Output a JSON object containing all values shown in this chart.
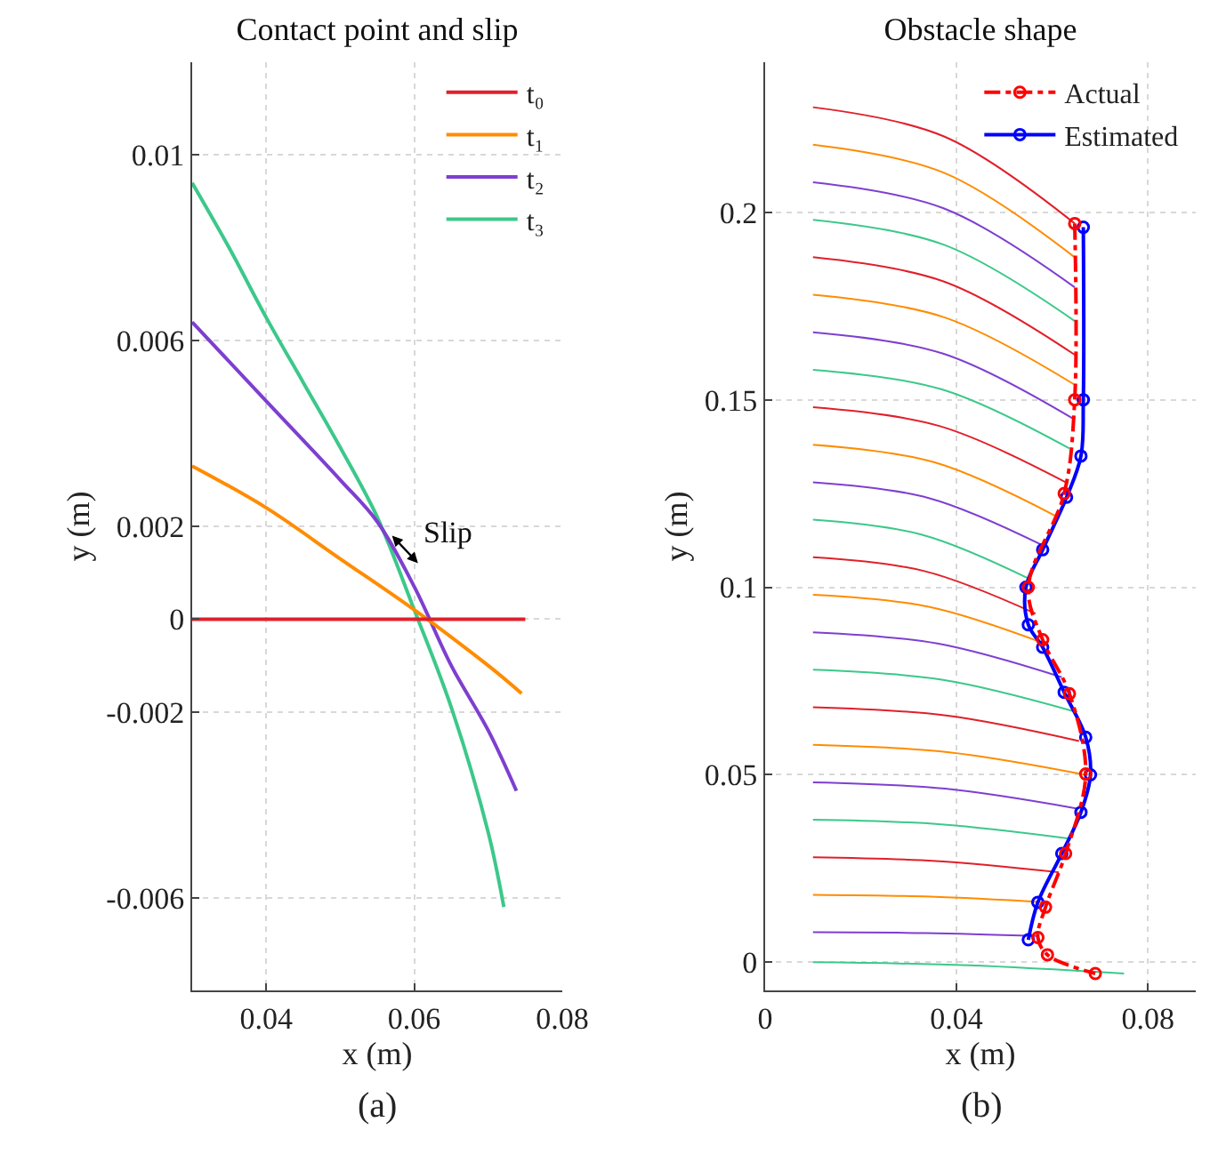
{
  "chart_data": [
    {
      "type": "line",
      "title": "Contact point and slip",
      "xlabel": "x (m)",
      "ylabel": "y (m)",
      "xlim": [
        0.03,
        0.08
      ],
      "xticks": [
        0.04,
        0.06,
        0.08
      ],
      "ylim": [
        -0.008,
        0.012
      ],
      "yticks": [
        -0.006,
        -0.002,
        0,
        0.002,
        0.006,
        0.01
      ],
      "grid": true,
      "legend": "top right",
      "series": [
        {
          "name": "t₀",
          "color": "#e0202a",
          "x": [
            0.03,
            0.075
          ],
          "values": [
            0,
            0
          ]
        },
        {
          "name": "t₁",
          "color": "#ff8c00",
          "x": [
            0.03,
            0.04,
            0.05,
            0.06,
            0.07,
            0.0745
          ],
          "values": [
            0.0033,
            0.0024,
            0.0013,
            0.0002,
            -0.001,
            -0.0016
          ]
        },
        {
          "name": "t₂",
          "color": "#7e3fd0",
          "x": [
            0.03,
            0.04,
            0.05,
            0.055,
            0.06,
            0.065,
            0.07,
            0.0738
          ],
          "values": [
            0.0064,
            0.0047,
            0.003,
            0.0021,
            0.0007,
            -0.001,
            -0.0024,
            -0.0037
          ]
        },
        {
          "name": "t₃",
          "color": "#3cc88a",
          "x": [
            0.03,
            0.035,
            0.04,
            0.045,
            0.05,
            0.055,
            0.06,
            0.065,
            0.07,
            0.0721
          ],
          "values": [
            0.0094,
            0.008,
            0.0065,
            0.0051,
            0.0037,
            0.0022,
            0.0002,
            -0.0019,
            -0.0046,
            -0.0062
          ]
        }
      ],
      "annotations": [
        {
          "text": "Slip",
          "x": 0.057,
          "y": 0.0018
        },
        "(a)"
      ]
    },
    {
      "type": "line",
      "title": "Obstacle shape",
      "xlabel": "x (m)",
      "ylabel": "y (m)",
      "xlim": [
        0,
        0.09
      ],
      "xticks": [
        0,
        0.04,
        0.08
      ],
      "ylim": [
        -0.0075,
        0.24
      ],
      "yticks": [
        0,
        0.05,
        0.1,
        0.15,
        0.2
      ],
      "grid": true,
      "legend": "top right",
      "series": [
        {
          "color": "#e0202a",
          "x": [
            0.01,
            0.0374,
            0.0647
          ],
          "values": [
            0.228,
            0.2202,
            0.197
          ]
        },
        {
          "color": "#ff8c00",
          "x": [
            0.01,
            0.0374,
            0.0647
          ],
          "values": [
            0.218,
            0.2105,
            0.188
          ]
        },
        {
          "color": "#7e3fd0",
          "x": [
            0.01,
            0.0374,
            0.0647
          ],
          "values": [
            0.208,
            0.201,
            0.18
          ]
        },
        {
          "color": "#3cc88a",
          "x": [
            0.01,
            0.0374,
            0.0647
          ],
          "values": [
            0.198,
            0.1913,
            0.171
          ]
        },
        {
          "color": "#e0202a",
          "x": [
            0.01,
            0.0374,
            0.0647
          ],
          "values": [
            0.188,
            0.1815,
            0.162
          ]
        },
        {
          "color": "#ff8c00",
          "x": [
            0.01,
            0.0374,
            0.0647
          ],
          "values": [
            0.178,
            0.172,
            0.154
          ]
        },
        {
          "color": "#7e3fd0",
          "x": [
            0.01,
            0.0372,
            0.0643
          ],
          "values": [
            0.168,
            0.1623,
            0.145
          ]
        },
        {
          "color": "#3cc88a",
          "x": [
            0.01,
            0.0368,
            0.0636
          ],
          "values": [
            0.158,
            0.1528,
            0.137
          ]
        },
        {
          "color": "#e0202a",
          "x": [
            0.01,
            0.0364,
            0.0628
          ],
          "values": [
            0.148,
            0.143,
            0.128
          ]
        },
        {
          "color": "#ff8c00",
          "x": [
            0.01,
            0.0354,
            0.0607
          ],
          "values": [
            0.138,
            0.1333,
            0.119
          ]
        },
        {
          "color": "#7e3fd0",
          "x": [
            0.01,
            0.0342,
            0.0583
          ],
          "values": [
            0.128,
            0.1238,
            0.111
          ]
        },
        {
          "color": "#3cc88a",
          "x": [
            0.01,
            0.0328,
            0.0556
          ],
          "values": [
            0.118,
            0.114,
            0.102
          ]
        },
        {
          "color": "#e0202a",
          "x": [
            0.01,
            0.0333,
            0.0565
          ],
          "values": [
            0.108,
            0.1043,
            0.093
          ]
        },
        {
          "color": "#ff8c00",
          "x": [
            0.01,
            0.0342,
            0.0584
          ],
          "values": [
            0.098,
            0.0948,
            0.085
          ]
        },
        {
          "color": "#7e3fd0",
          "x": [
            0.01,
            0.036,
            0.062
          ],
          "values": [
            0.088,
            0.085,
            0.076
          ]
        },
        {
          "color": "#3cc88a",
          "x": [
            0.01,
            0.0372,
            0.0643
          ],
          "values": [
            0.078,
            0.0753,
            0.067
          ]
        },
        {
          "color": "#e0202a",
          "x": [
            0.01,
            0.0378,
            0.0656
          ],
          "values": [
            0.068,
            0.0658,
            0.059
          ]
        },
        {
          "color": "#ff8c00",
          "x": [
            0.01,
            0.0385,
            0.067
          ],
          "values": [
            0.058,
            0.056,
            0.05
          ]
        },
        {
          "color": "#7e3fd0",
          "x": [
            0.01,
            0.0376,
            0.0652
          ],
          "values": [
            0.048,
            0.0463,
            0.041
          ]
        },
        {
          "color": "#3cc88a",
          "x": [
            0.01,
            0.0368,
            0.0636
          ],
          "values": [
            0.038,
            0.0368,
            0.033
          ]
        },
        {
          "color": "#e0202a",
          "x": [
            0.01,
            0.0357,
            0.0614
          ],
          "values": [
            0.028,
            0.027,
            0.024
          ]
        },
        {
          "color": "#ff8c00",
          "x": [
            0.01,
            0.0345,
            0.0589
          ],
          "values": [
            0.018,
            0.0175,
            0.016
          ]
        },
        {
          "color": "#7e3fd0",
          "x": [
            0.01,
            0.0336,
            0.0571
          ],
          "values": [
            0.008,
            0.0078,
            0.007
          ]
        },
        {
          "color": "#3cc88a",
          "x": [
            0.01,
            0.0425,
            0.075
          ],
          "values": [
            0,
            -0.0008,
            -0.003
          ]
        },
        {
          "name": "Actual",
          "color": "#ff0000",
          "line_style": "dashdot",
          "marker": "circle",
          "x": [
            0.0647,
            0.0647,
            0.0625,
            0.055,
            0.058,
            0.0636,
            0.067,
            0.0628,
            0.0586,
            0.057,
            0.059,
            0.069
          ],
          "values": [
            0.197,
            0.15,
            0.125,
            0.1,
            0.086,
            0.0716,
            0.0502,
            0.029,
            0.0147,
            0.0066,
            0.002,
            -0.003
          ]
        },
        {
          "name": "Estimated",
          "color": "#0000ff",
          "marker": "circle",
          "x": [
            0.0665,
            0.0665,
            0.066,
            0.063,
            0.058,
            0.0545,
            0.055,
            0.058,
            0.0625,
            0.067,
            0.068,
            0.066,
            0.062,
            0.057,
            0.055
          ],
          "values": [
            0.196,
            0.15,
            0.135,
            0.124,
            0.11,
            0.1,
            0.09,
            0.084,
            0.072,
            0.06,
            0.05,
            0.04,
            0.029,
            0.016,
            0.006
          ]
        }
      ],
      "annotations": [
        "(b)"
      ]
    }
  ]
}
